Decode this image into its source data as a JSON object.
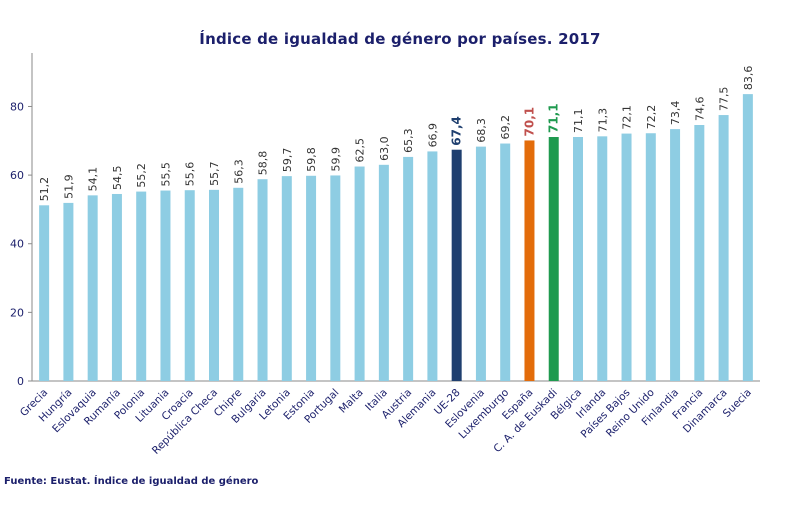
{
  "title": "Índice de igualdad de género por países. 2017",
  "source": "Fuente: Eustat. Índice de igualdad de género",
  "colors": {
    "default_bar": "#8ecde3",
    "ue28": "#1f3f6f",
    "espana": "#e36c0a",
    "euskadi": "#1f9a4f",
    "axis_text": "#1b1f6b",
    "value_text": "#333333",
    "espana_label": "#c0504d",
    "euskadi_label": "#1f9a4f",
    "ue28_label": "#1f3f6f"
  },
  "chart_data": {
    "type": "bar",
    "title": "Índice de igualdad de género por países. 2017",
    "xlabel": "",
    "ylabel": "",
    "ylim": [
      0,
      95
    ],
    "yticks": [
      0,
      20,
      40,
      60,
      80
    ],
    "grid": false,
    "categories": [
      "Grecia",
      "Hungría",
      "Eslovaquia",
      "Rumanía",
      "Polonia",
      "Lituania",
      "Croacia",
      "República Checa",
      "Chipre",
      "Bulgaria",
      "Letonia",
      "Estonia",
      "Portugal",
      "Malta",
      "Italia",
      "Austria",
      "Alemania",
      "UE-28",
      "Eslovenia",
      "Luxemburgo",
      "España",
      "C. A. de Euskadi",
      "Bélgica",
      "Irlanda",
      "Países Bajos",
      "Reino Unido",
      "Finlandia",
      "Francia",
      "Dinamarca",
      "Suecia"
    ],
    "values": [
      51.2,
      51.9,
      54.1,
      54.5,
      55.2,
      55.5,
      55.6,
      55.7,
      56.3,
      58.8,
      59.7,
      59.8,
      59.9,
      62.5,
      63.0,
      65.3,
      66.9,
      67.4,
      68.3,
      69.2,
      70.1,
      71.1,
      71.1,
      71.3,
      72.1,
      72.2,
      73.4,
      74.6,
      77.5,
      83.6
    ],
    "value_labels": [
      "51,2",
      "51,9",
      "54,1",
      "54,5",
      "55,2",
      "55,5",
      "55,6",
      "55,7",
      "56,3",
      "58,8",
      "59,7",
      "59,8",
      "59,9",
      "62,5",
      "63,0",
      "65,3",
      "66,9",
      "67,4",
      "68,3",
      "69,2",
      "70,1",
      "71,1",
      "71,1",
      "71,3",
      "72,1",
      "72,2",
      "73,4",
      "74,6",
      "77,5",
      "83,6"
    ],
    "highlights": {
      "UE-28": "ue28",
      "España": "espana",
      "C. A. de Euskadi": "euskadi"
    }
  }
}
